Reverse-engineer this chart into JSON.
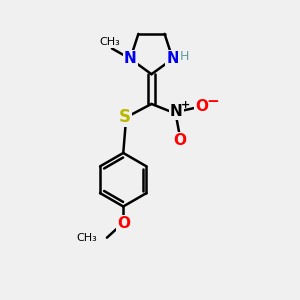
{
  "bg_color": "#f0f0f0",
  "bond_color": "#000000",
  "N_color": "#0000ee",
  "H_color": "#5f9ea0",
  "S_color": "#b8b800",
  "O_color": "#ff0000",
  "line_width": 1.8,
  "fig_size": [
    3.0,
    3.0
  ],
  "dpi": 100,
  "xlim": [
    0,
    10
  ],
  "ylim": [
    0,
    10
  ]
}
